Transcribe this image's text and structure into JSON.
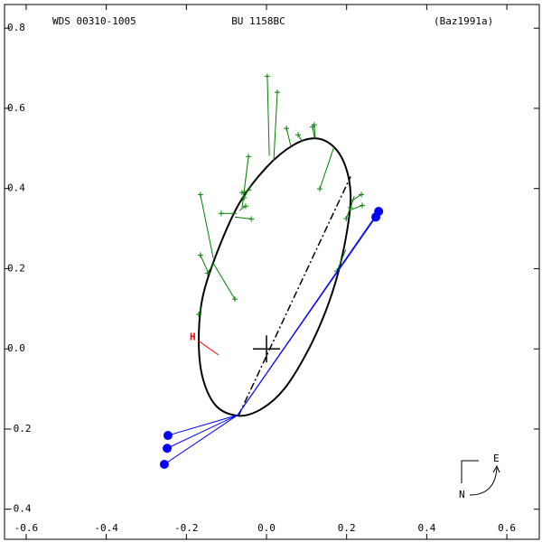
{
  "chart_data": {
    "type": "orbit",
    "header": {
      "left": "WDS 00310-1005",
      "center": "BU 1158BC",
      "right": "(Baz1991a)"
    },
    "xlim": [
      -0.654,
      0.681
    ],
    "ylim": [
      -0.475,
      0.859
    ],
    "xticks": [
      -0.6,
      -0.4,
      -0.2,
      {
        "value": 0,
        "label": "0.0"
      },
      0.2,
      0.4,
      0.6
    ],
    "yticks": [
      0.8,
      0.6,
      0.4,
      0.2,
      {
        "value": 0,
        "label": "0.0"
      },
      -0.2,
      -0.4
    ],
    "orbit": {
      "color": "#000000",
      "x": [
        0.124,
        0.169,
        0.198,
        0.21,
        0.203,
        0.18,
        0.147,
        0.101,
        0.045,
        -0.011,
        -0.068,
        -0.124,
        -0.158,
        -0.169,
        -0.16,
        -0.124,
        -0.068,
        0.0,
        0.068
      ],
      "y": [
        0.525,
        0.503,
        0.453,
        0.385,
        0.306,
        0.194,
        0.092,
        -0.009,
        -0.099,
        -0.149,
        -0.167,
        -0.144,
        -0.077,
        0.014,
        0.126,
        0.239,
        0.363,
        0.453,
        0.509
      ]
    },
    "line_of_apsides": {
      "x": [
        -0.07,
        0.21
      ],
      "y": [
        -0.167,
        0.43
      ]
    },
    "observations": {
      "color": "#008000",
      "x": [
        0.002,
        0.027,
        0.05,
        0.079,
        0.115,
        0.119,
        0.133,
        -0.165,
        -0.113,
        -0.061,
        -0.045,
        -0.052,
        -0.038,
        -0.056,
        -0.165,
        -0.147,
        -0.079,
        -0.169,
        0.176,
        0.199,
        0.237,
        0.239,
        0.21
      ],
      "y": [
        0.68,
        0.64,
        0.55,
        0.534,
        0.554,
        0.559,
        0.399,
        0.385,
        0.338,
        0.39,
        0.48,
        0.356,
        0.324,
        0.377,
        0.234,
        0.189,
        0.124,
        0.086,
        0.194,
        0.325,
        0.385,
        0.358,
        0.352
      ]
    },
    "residual_ends": {
      "x": [
        0.007,
        0.018,
        0.061,
        0.09,
        0.12,
        0.122,
        0.169,
        -0.133,
        -0.074,
        -0.038,
        -0.061,
        -0.068,
        -0.079,
        -0.038,
        -0.144,
        -0.131,
        -0.133,
        -0.162,
        0.198,
        0.21,
        0.212,
        0.212,
        0.219
      ],
      "y": [
        0.482,
        0.468,
        0.505,
        0.516,
        0.525,
        0.525,
        0.505,
        0.227,
        0.338,
        0.397,
        0.352,
        0.345,
        0.329,
        0.41,
        0.187,
        0.216,
        0.214,
        0.104,
        0.248,
        0.354,
        0.369,
        0.347,
        0.381
      ]
    },
    "special_points": {
      "color": "#0000ff",
      "x": [
        -0.246,
        -0.248,
        -0.255,
        0.28,
        0.273
      ],
      "y": [
        -0.216,
        -0.248,
        -0.288,
        0.343,
        0.329
      ],
      "connector_x": -0.072,
      "connector_y": -0.165
    },
    "h_marker": {
      "label": "H",
      "color": "#ff0000",
      "x": [
        -0.17,
        -0.12
      ],
      "y": [
        0.02,
        -0.015
      ]
    },
    "compass": {
      "north": "N",
      "east": "E"
    }
  }
}
